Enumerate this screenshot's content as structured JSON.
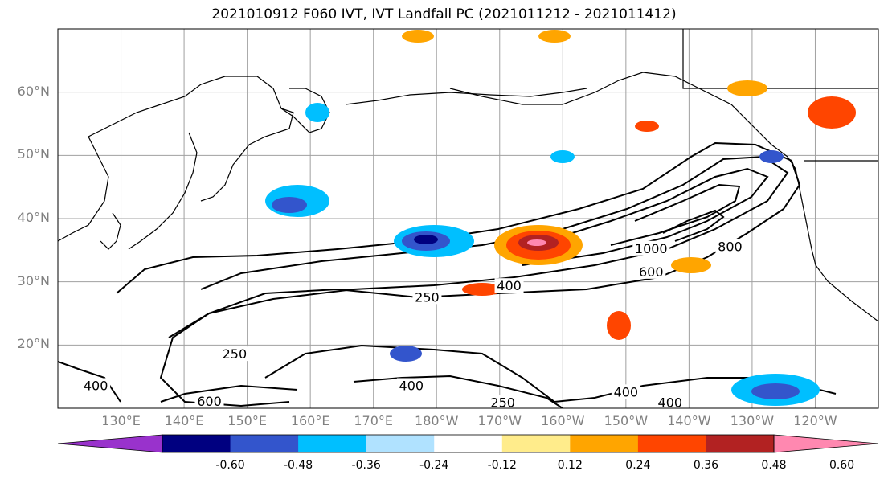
{
  "title": "2021010912 F060 IVT, IVT Landfall PC (2021011212 - 2021011412)",
  "colors": {
    "land_outline": "#000000",
    "grid": "#a0a0a0",
    "contour": "#000000",
    "axis_label": "#808080"
  },
  "chart_data": {
    "type": "map",
    "projection": "lat-lon",
    "lat_range": [
      10,
      70
    ],
    "lon_range": [
      120,
      250
    ],
    "lat_ticks": [
      "60°N",
      "50°N",
      "40°N",
      "30°N",
      "20°N"
    ],
    "lat_tick_values": [
      60,
      50,
      40,
      30,
      20
    ],
    "lon_ticks": [
      "130°E",
      "140°E",
      "150°E",
      "160°E",
      "170°E",
      "180°W",
      "170°W",
      "160°W",
      "150°W",
      "140°W",
      "130°W",
      "120°W"
    ],
    "lon_tick_values": [
      130,
      140,
      150,
      160,
      170,
      180,
      190,
      200,
      210,
      220,
      230,
      240
    ],
    "gridlines": true,
    "colorbar": {
      "levels": [
        "-0.60",
        "-0.48",
        "-0.36",
        "-0.24",
        "-0.12",
        "0.12",
        "0.24",
        "0.36",
        "0.48",
        "0.60"
      ],
      "colors": [
        "#9932cc",
        "#000080",
        "#3355cc",
        "#00bfff",
        "#b0e2ff",
        "#ffffff",
        "#ffec8b",
        "#ffa500",
        "#ff4500",
        "#b22222",
        "#ff88b0"
      ],
      "extend": "both"
    },
    "contour_labels": [
      {
        "text": "250",
        "lon": 178.5,
        "lat": 27.5
      },
      {
        "text": "400",
        "lon": 191.5,
        "lat": 29.3
      },
      {
        "text": "600",
        "lon": 214,
        "lat": 31.5
      },
      {
        "text": "800",
        "lon": 226.5,
        "lat": 35.5
      },
      {
        "text": "1000",
        "lon": 214,
        "lat": 35.2
      },
      {
        "text": "250",
        "lon": 148,
        "lat": 18.5
      },
      {
        "text": "400",
        "lon": 126,
        "lat": 13.5
      },
      {
        "text": "400",
        "lon": 176,
        "lat": 13.5
      },
      {
        "text": "600",
        "lon": 144,
        "lat": 11
      },
      {
        "text": "250",
        "lon": 190.5,
        "lat": 10.8
      },
      {
        "text": "400",
        "lon": 210,
        "lat": 12.5
      },
      {
        "text": "400",
        "lon": 217,
        "lat": 10.8
      }
    ]
  }
}
